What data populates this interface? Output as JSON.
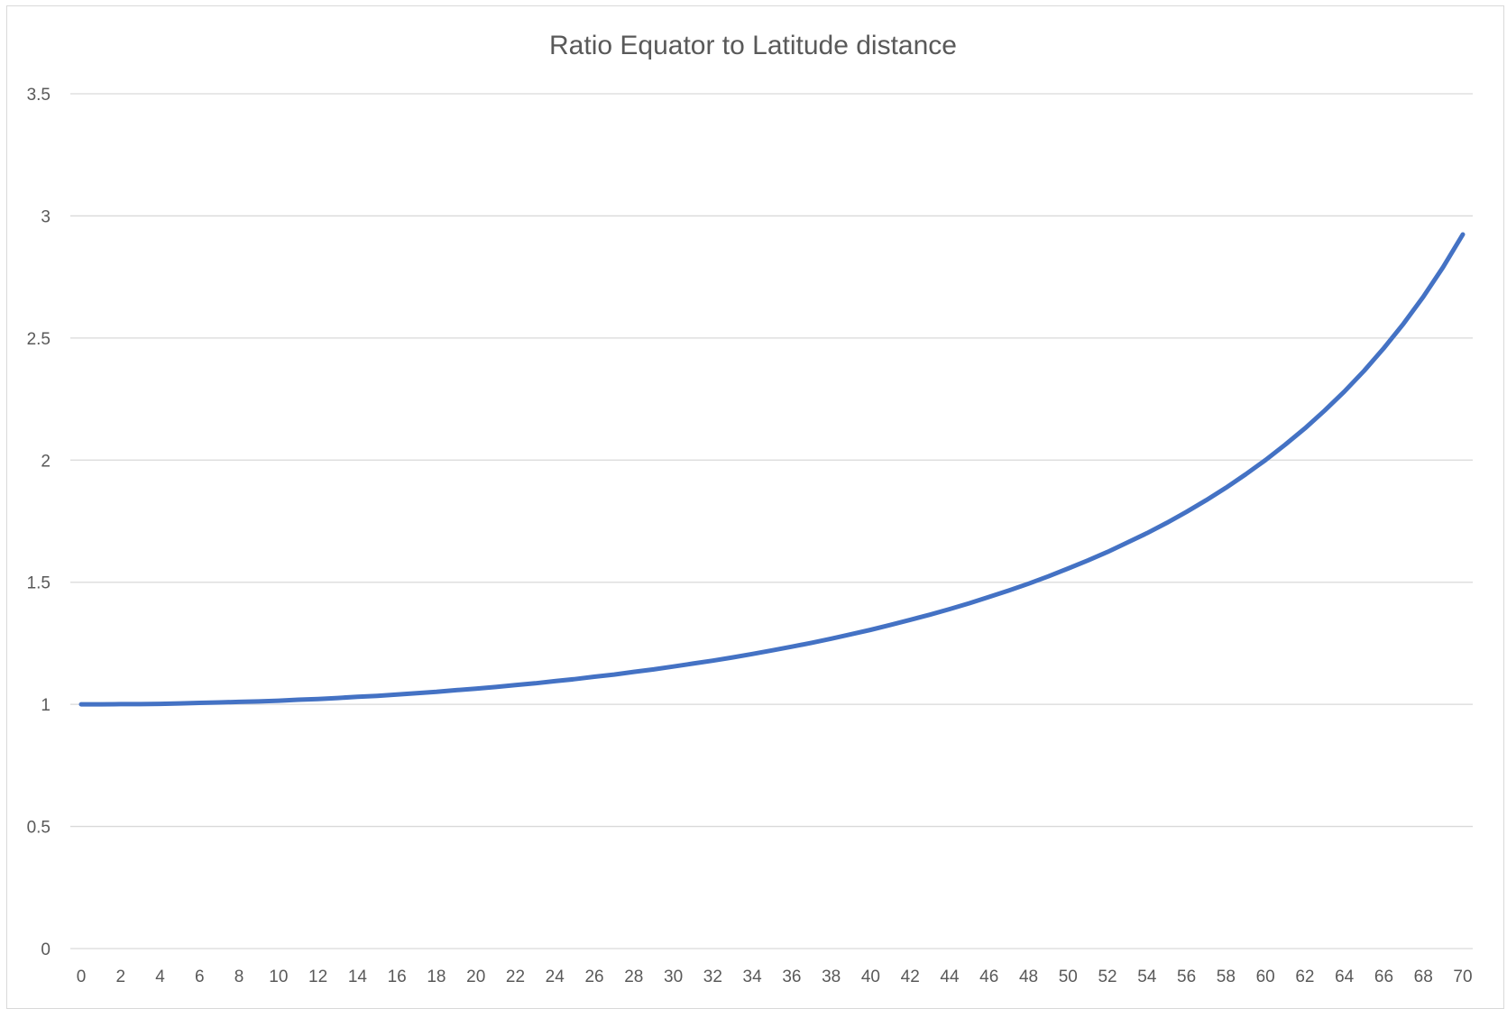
{
  "chart_data": {
    "type": "line",
    "title": "Ratio Equator to Latitude distance",
    "xlabel": "",
    "ylabel": "",
    "xlim": [
      0,
      70
    ],
    "ylim": [
      0,
      3.5
    ],
    "grid": true,
    "legend": "none",
    "x_tick_labels": [
      "0",
      "2",
      "4",
      "6",
      "8",
      "10",
      "12",
      "14",
      "16",
      "18",
      "20",
      "22",
      "24",
      "26",
      "28",
      "30",
      "32",
      "34",
      "36",
      "38",
      "40",
      "42",
      "44",
      "46",
      "48",
      "50",
      "52",
      "54",
      "56",
      "58",
      "60",
      "62",
      "64",
      "66",
      "68",
      "70"
    ],
    "y_tick_labels": [
      "0",
      "0.5",
      "1",
      "1.5",
      "2",
      "2.5",
      "3",
      "3.5"
    ],
    "y_ticks": [
      0,
      0.5,
      1,
      1.5,
      2,
      2.5,
      3,
      3.5
    ],
    "series": [
      {
        "name": "",
        "color": "#4472C4",
        "x": [
          0,
          1,
          2,
          3,
          4,
          5,
          6,
          7,
          8,
          9,
          10,
          11,
          12,
          13,
          14,
          15,
          16,
          17,
          18,
          19,
          20,
          21,
          22,
          23,
          24,
          25,
          26,
          27,
          28,
          29,
          30,
          31,
          32,
          33,
          34,
          35,
          36,
          37,
          38,
          39,
          40,
          41,
          42,
          43,
          44,
          45,
          46,
          47,
          48,
          49,
          50,
          51,
          52,
          53,
          54,
          55,
          56,
          57,
          58,
          59,
          60,
          61,
          62,
          63,
          64,
          65,
          66,
          67,
          68,
          69,
          70
        ],
        "values": [
          1.0,
          1.0,
          1.001,
          1.001,
          1.002,
          1.004,
          1.006,
          1.008,
          1.01,
          1.012,
          1.015,
          1.019,
          1.022,
          1.026,
          1.031,
          1.035,
          1.04,
          1.046,
          1.051,
          1.058,
          1.064,
          1.071,
          1.079,
          1.086,
          1.095,
          1.103,
          1.113,
          1.122,
          1.133,
          1.143,
          1.155,
          1.167,
          1.179,
          1.192,
          1.206,
          1.221,
          1.236,
          1.252,
          1.269,
          1.287,
          1.305,
          1.325,
          1.346,
          1.367,
          1.39,
          1.414,
          1.44,
          1.466,
          1.494,
          1.524,
          1.556,
          1.589,
          1.624,
          1.662,
          1.701,
          1.743,
          1.788,
          1.836,
          1.887,
          1.942,
          2.0,
          2.063,
          2.13,
          2.203,
          2.281,
          2.366,
          2.459,
          2.559,
          2.669,
          2.79,
          2.924
        ]
      }
    ]
  },
  "colors": {
    "line": "#4472C4",
    "grid": "#d9d9d9",
    "text": "#595959"
  }
}
